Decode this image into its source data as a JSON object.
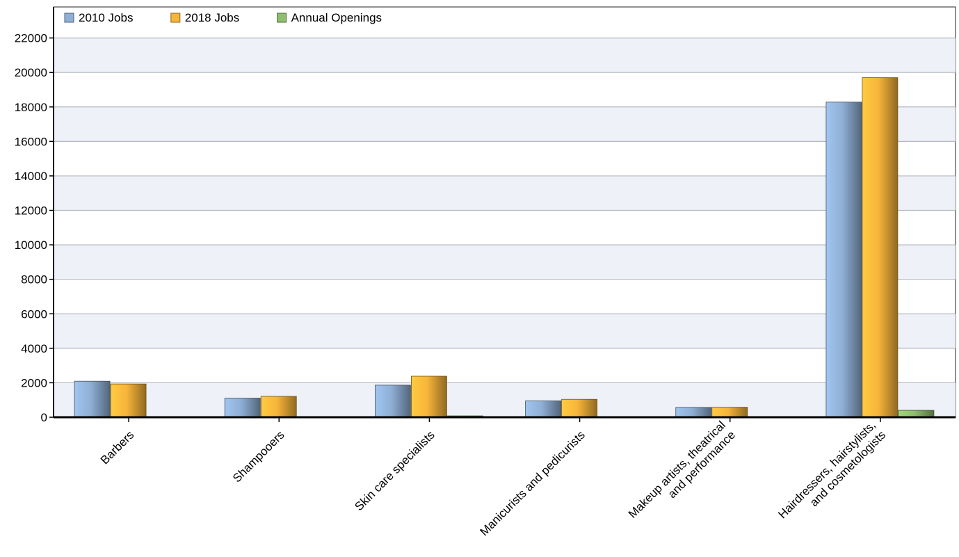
{
  "chart_data": {
    "type": "bar",
    "categories": [
      [
        "Barbers"
      ],
      [
        "Shampooers"
      ],
      [
        "Skin care specialists"
      ],
      [
        "Manicurists and pedicurists"
      ],
      [
        "Makeup artists, theatrical",
        "and performance"
      ],
      [
        "Hairdressers, hairstylists,",
        "and cosmetologists"
      ]
    ],
    "series": [
      {
        "name": "2010 Jobs",
        "color": "#8fb0d6",
        "values": [
          2090,
          1110,
          1860,
          950,
          570,
          18280
        ]
      },
      {
        "name": "2018 Jobs",
        "color": "#f7b53a",
        "values": [
          1930,
          1210,
          2380,
          1040,
          580,
          19700
        ]
      },
      {
        "name": "Annual Openings",
        "color": "#8fbf6e",
        "values": [
          0,
          0,
          80,
          0,
          0,
          400
        ]
      }
    ],
    "yticks": [
      0,
      2000,
      4000,
      6000,
      8000,
      10000,
      12000,
      14000,
      16000,
      18000,
      20000,
      22000
    ],
    "ylim": [
      0,
      23800
    ],
    "grid": true,
    "legend": "top-left"
  }
}
